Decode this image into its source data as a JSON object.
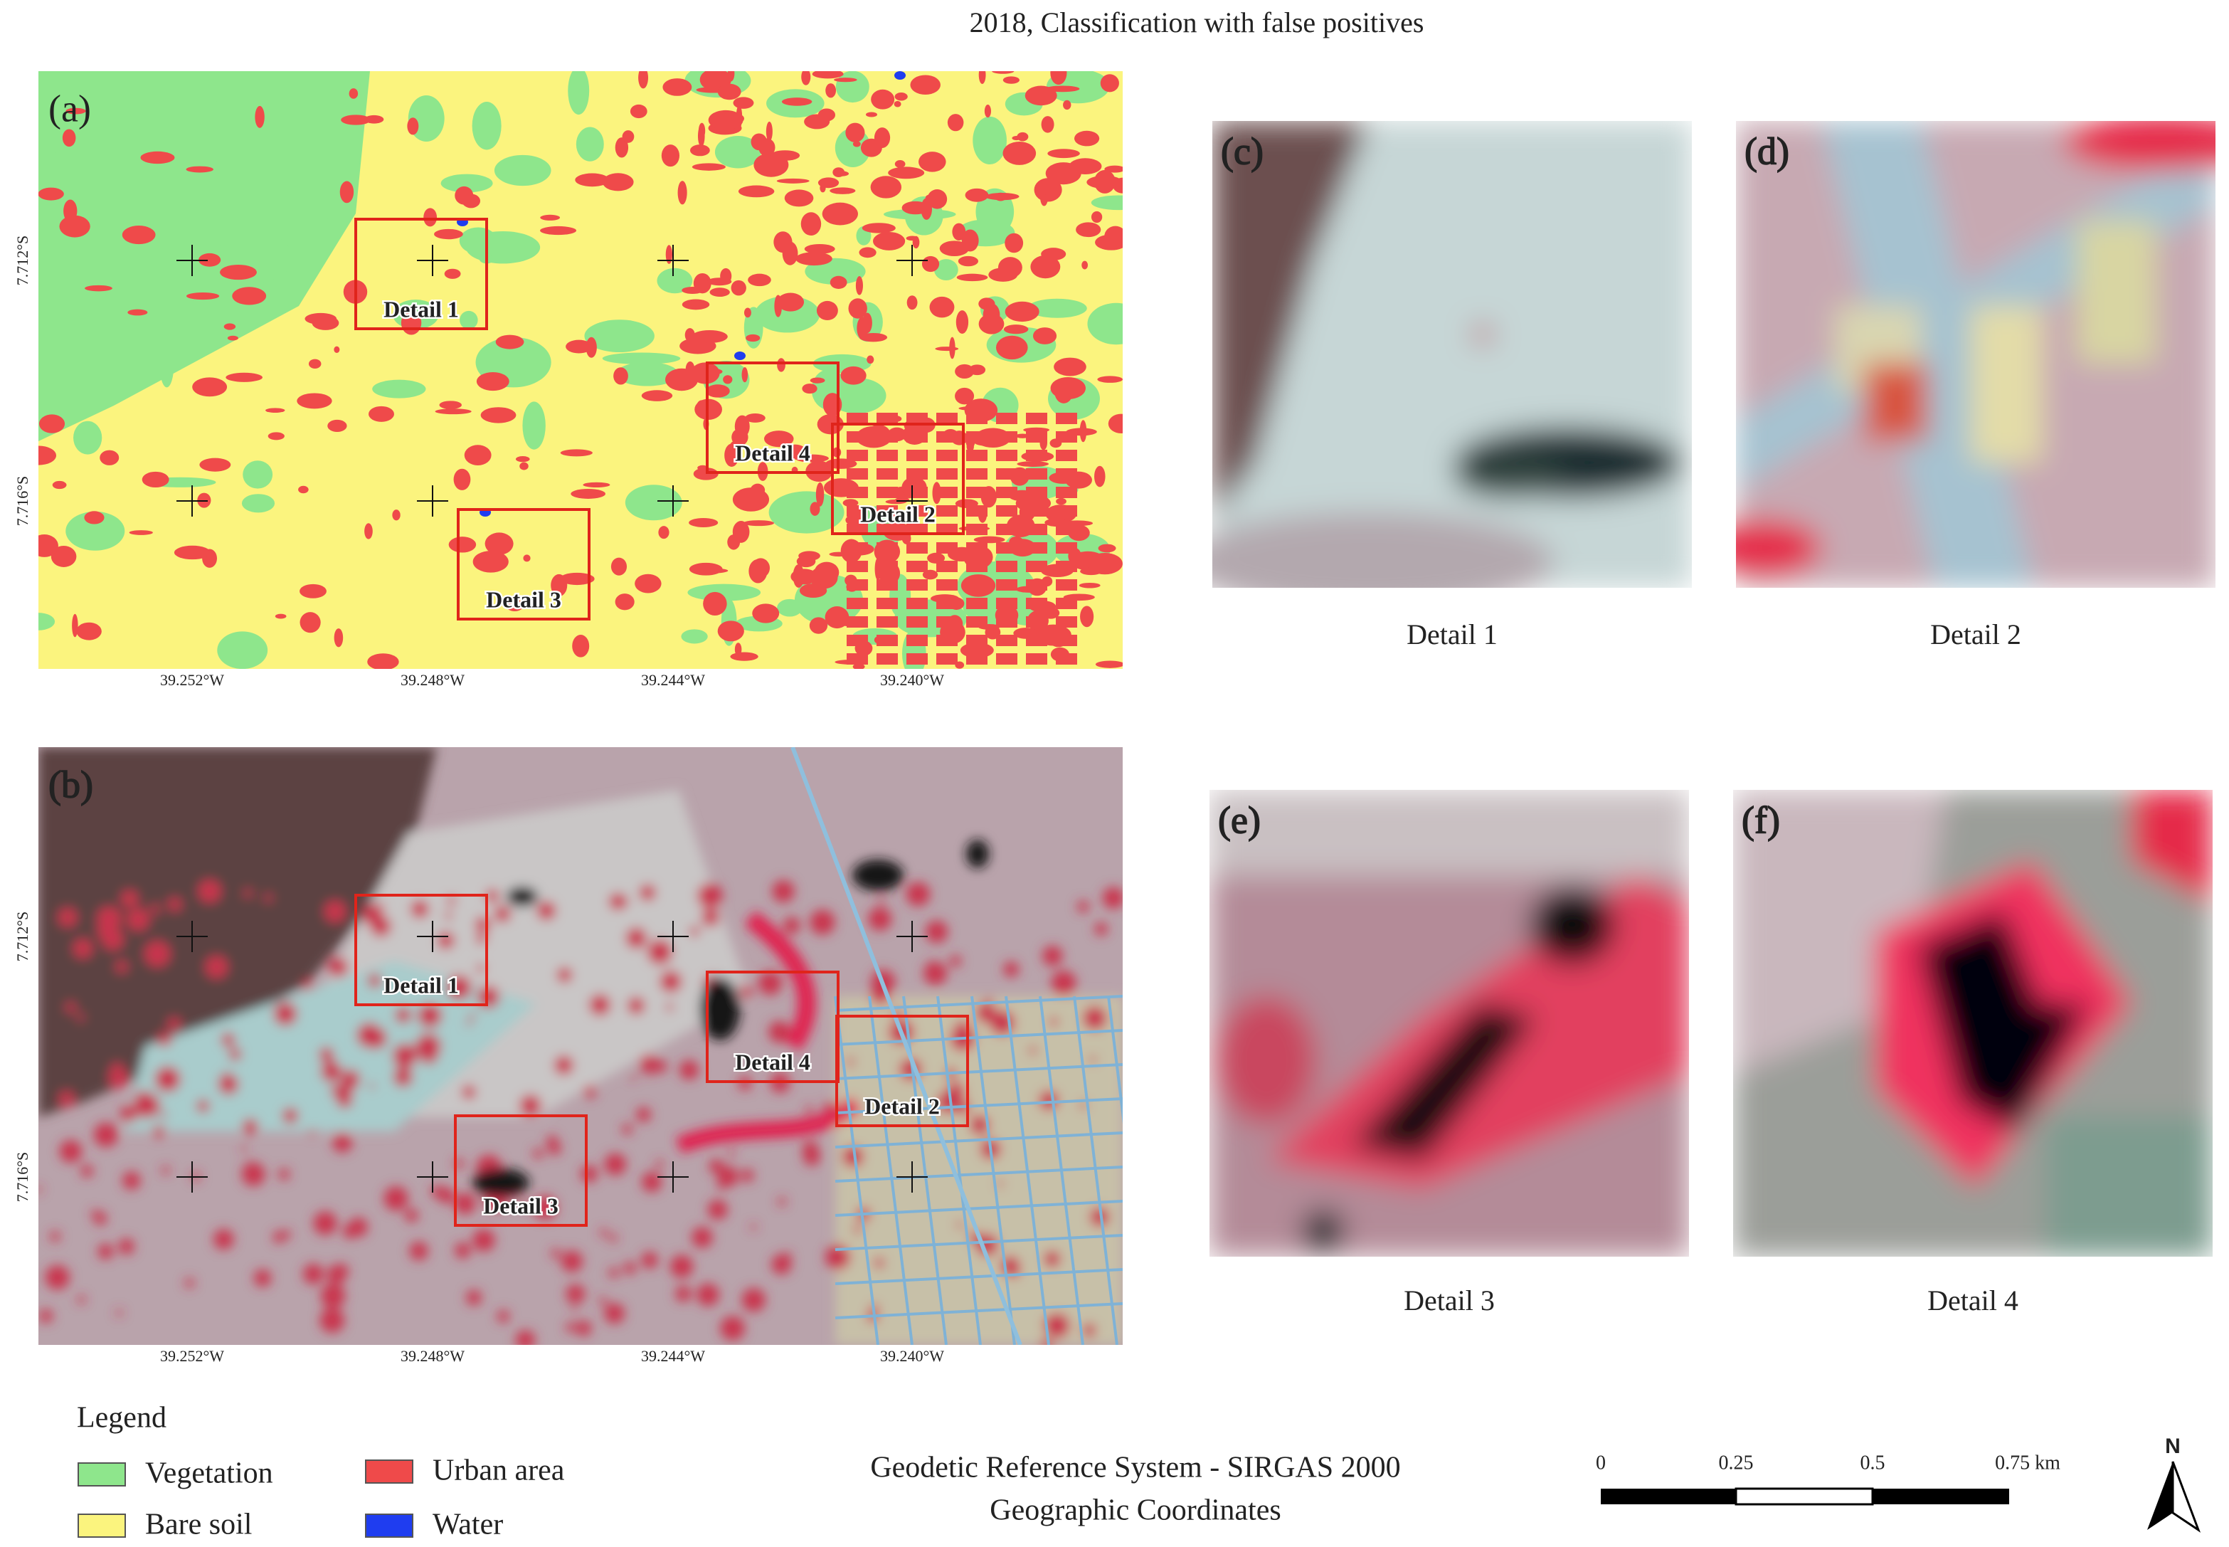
{
  "title": "2018, Classification with false positives",
  "map_panels": [
    {
      "label": "(a)",
      "details": [
        "Detail 1",
        "Detail 4",
        "Detail 2",
        "Detail 3"
      ]
    },
    {
      "label": "(b)",
      "details": [
        "Detail 1",
        "Detail 4",
        "Detail 2",
        "Detail 3"
      ]
    }
  ],
  "lon_labels": [
    "39.252°W",
    "39.248°W",
    "39.244°W",
    "39.240°W"
  ],
  "lat_labels": [
    "7.712°S",
    "7.716°S"
  ],
  "detail_panels": [
    {
      "label": "(c)",
      "caption": "Detail 1"
    },
    {
      "label": "(d)",
      "caption": "Detail 2"
    },
    {
      "label": "(e)",
      "caption": "Detail 3"
    },
    {
      "label": "(f)",
      "caption": "Detail 4"
    }
  ],
  "legend": {
    "title": "Legend",
    "items": [
      {
        "name": "Vegetation",
        "color": "#8ee68c"
      },
      {
        "name": "Bare soil",
        "color": "#fbf47e"
      },
      {
        "name": "Urban area",
        "color": "#ef4a4a"
      },
      {
        "name": "Water",
        "color": "#1f3df0"
      }
    ]
  },
  "reference": [
    "Geodetic Reference System - SIRGAS 2000",
    "Geographic Coordinates"
  ],
  "scale_bar": {
    "labels": [
      "0",
      "0.25",
      "0.5",
      "0.75 km"
    ]
  },
  "north": "N"
}
